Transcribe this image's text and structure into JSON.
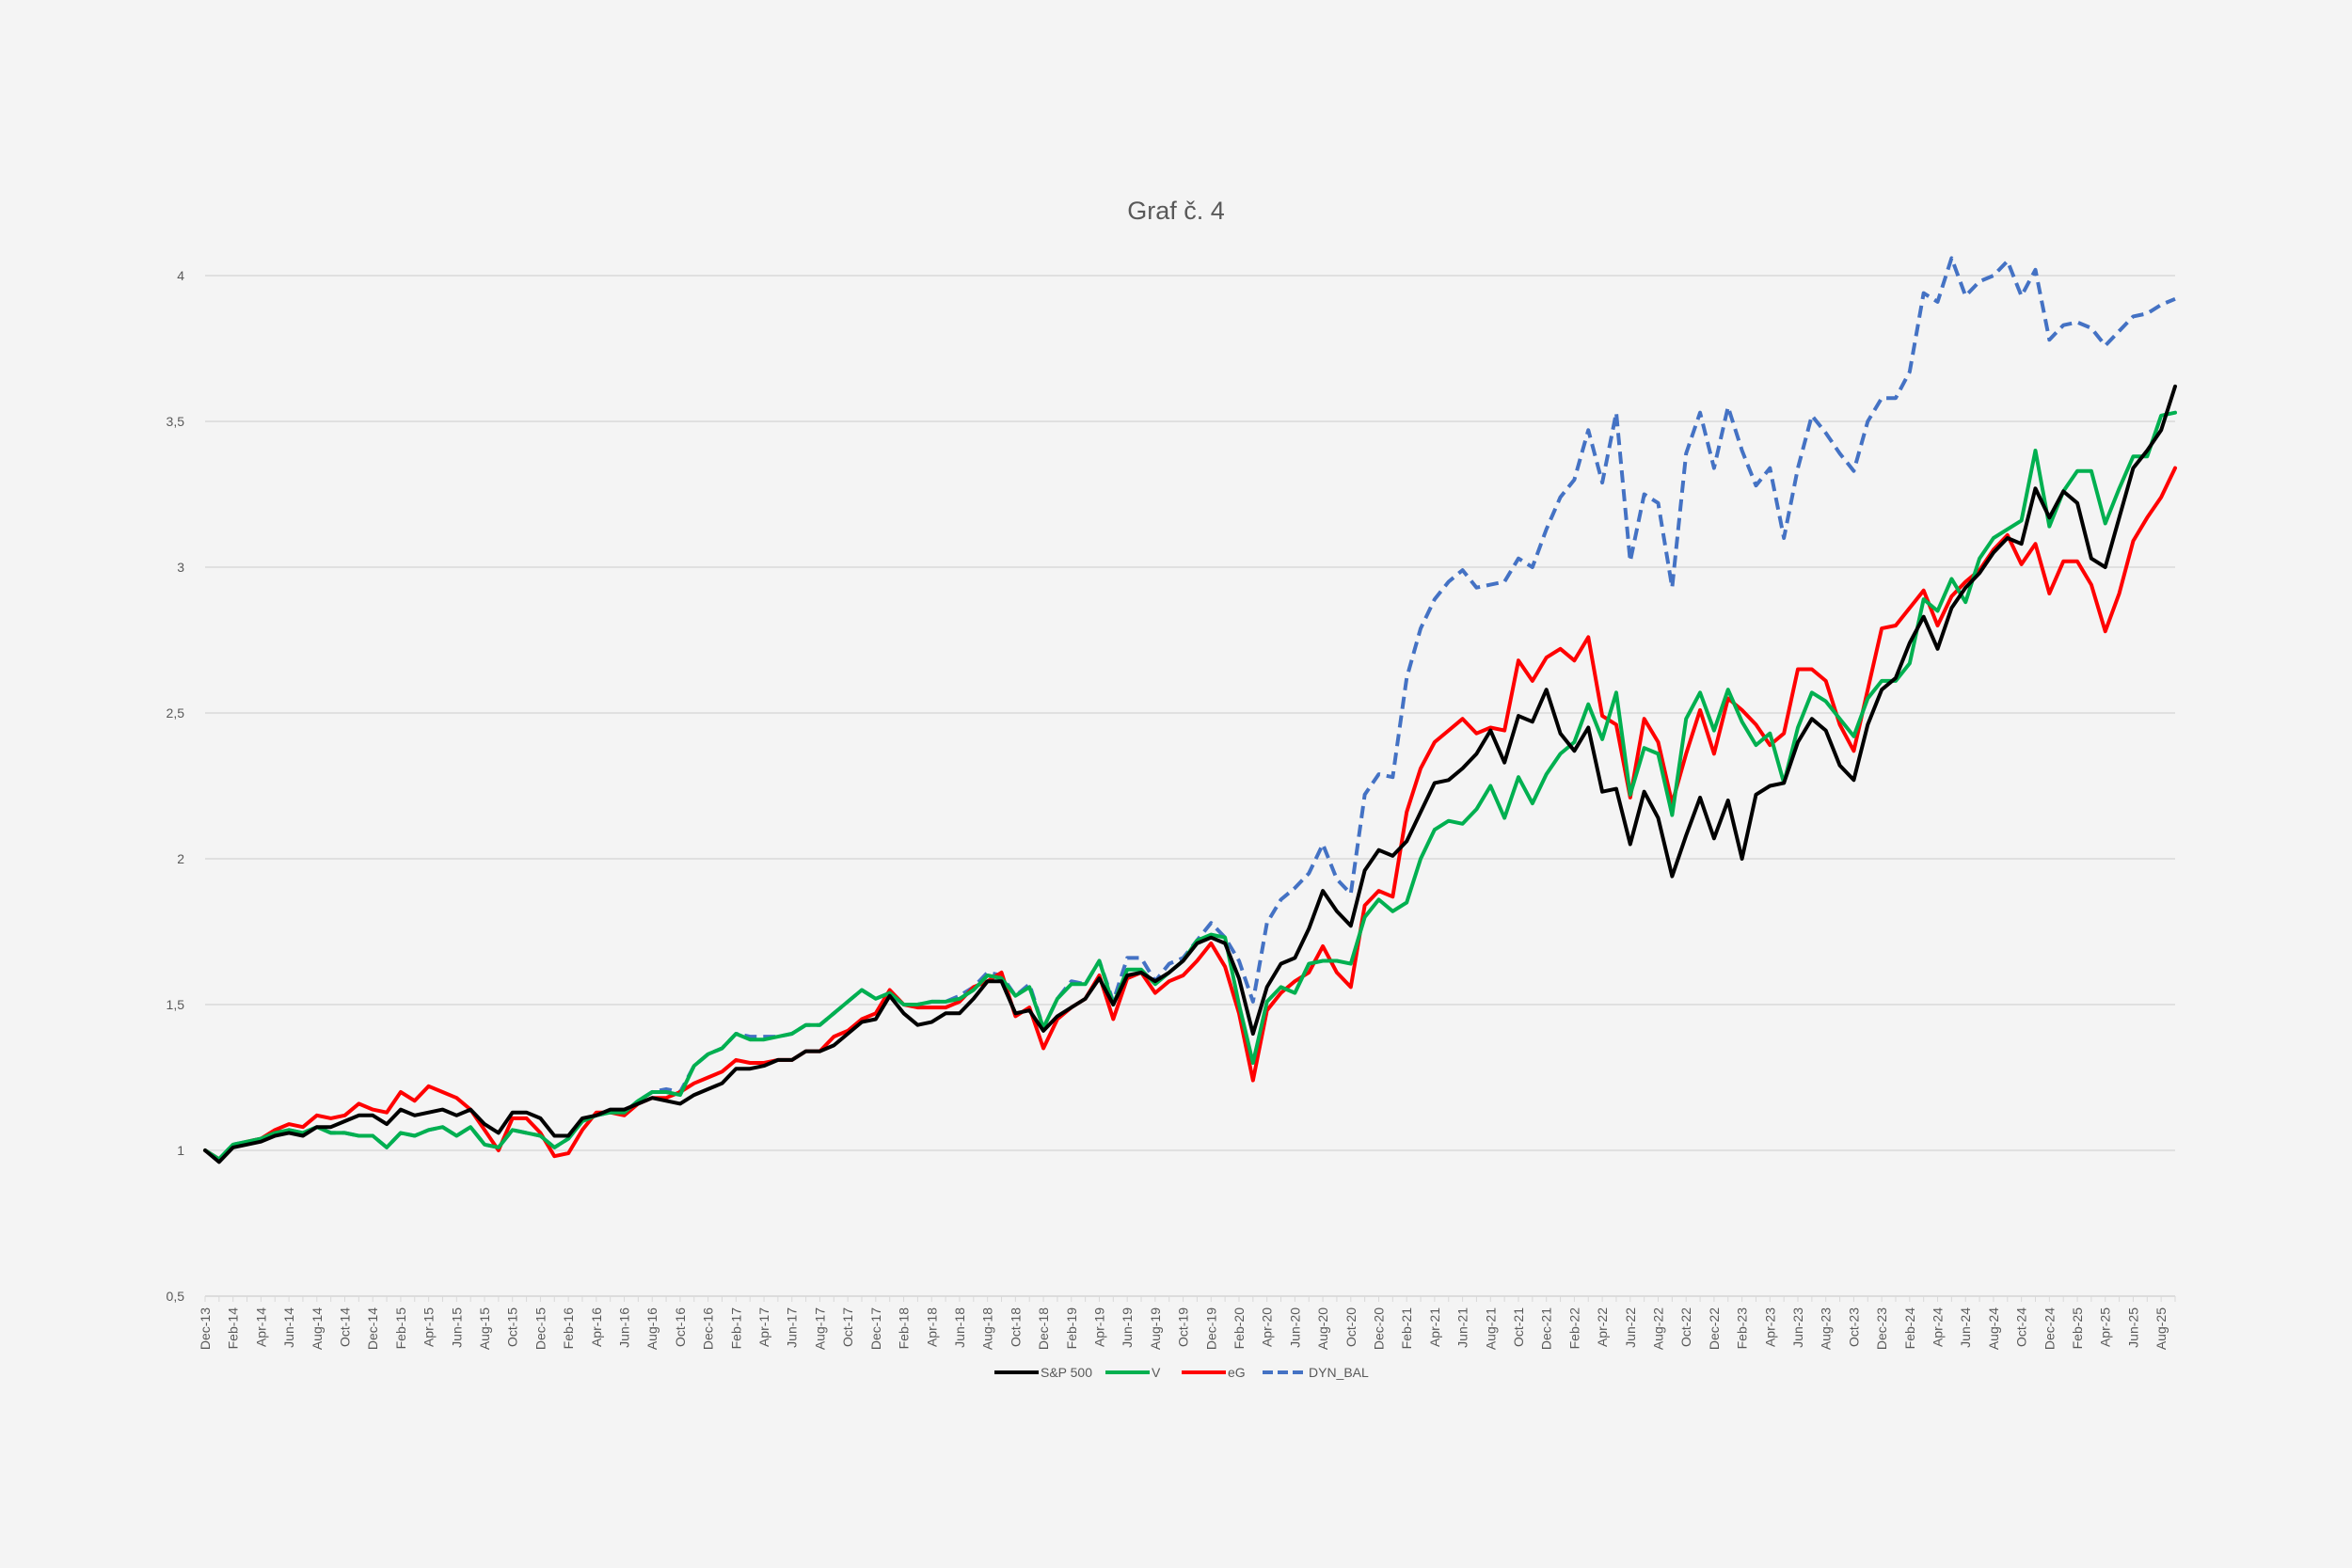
{
  "chart_data": {
    "type": "line",
    "title": "Graf č. 4",
    "xlabel": "",
    "ylabel": "",
    "ylim": [
      0.5,
      4
    ],
    "yticks": [
      "0,5",
      "1",
      "1,5",
      "2",
      "2,5",
      "3",
      "3,5",
      "4"
    ],
    "grid": true,
    "legend_position": "bottom",
    "x_tick_labels": [
      "Dec-13",
      "Feb-14",
      "Apr-14",
      "Jun-14",
      "Aug-14",
      "Oct-14",
      "Dec-14",
      "Feb-15",
      "Apr-15",
      "Jun-15",
      "Aug-15",
      "Oct-15",
      "Dec-15",
      "Feb-16",
      "Apr-16",
      "Jun-16",
      "Aug-16",
      "Oct-16",
      "Dec-16",
      "Feb-17",
      "Apr-17",
      "Jun-17",
      "Aug-17",
      "Oct-17",
      "Dec-17",
      "Feb-18",
      "Apr-18",
      "Jun-18",
      "Aug-18",
      "Oct-18",
      "Dec-18",
      "Feb-19",
      "Apr-19",
      "Jun-19",
      "Aug-19",
      "Oct-19",
      "Dec-19",
      "Feb-20",
      "Apr-20",
      "Jun-20",
      "Aug-20",
      "Oct-20",
      "Dec-20",
      "Feb-21",
      "Apr-21",
      "Jun-21",
      "Aug-21",
      "Oct-21",
      "Dec-21",
      "Feb-22",
      "Apr-22",
      "Jun-22",
      "Aug-22",
      "Oct-22",
      "Dec-22",
      "Feb-23",
      "Apr-23",
      "Jun-23",
      "Aug-23",
      "Oct-23",
      "Dec-23",
      "Feb-24",
      "Apr-24",
      "Jun-24",
      "Aug-24",
      "Oct-24",
      "Dec-24",
      "Feb-25",
      "Apr-25",
      "Jun-25",
      "Aug-25"
    ],
    "x_start": "Dec-13",
    "x_frequency": "monthly",
    "series": [
      {
        "name": "S&P 500",
        "color": "#000000",
        "dash": "solid",
        "values": [
          1.0,
          0.96,
          1.01,
          1.02,
          1.03,
          1.05,
          1.06,
          1.05,
          1.08,
          1.08,
          1.1,
          1.12,
          1.12,
          1.09,
          1.14,
          1.12,
          1.13,
          1.14,
          1.12,
          1.14,
          1.09,
          1.06,
          1.13,
          1.13,
          1.11,
          1.05,
          1.05,
          1.11,
          1.12,
          1.14,
          1.14,
          1.16,
          1.18,
          1.17,
          1.16,
          1.19,
          1.21,
          1.23,
          1.28,
          1.28,
          1.29,
          1.31,
          1.31,
          1.34,
          1.34,
          1.36,
          1.4,
          1.44,
          1.45,
          1.53,
          1.47,
          1.43,
          1.44,
          1.47,
          1.47,
          1.52,
          1.58,
          1.58,
          1.47,
          1.48,
          1.41,
          1.46,
          1.49,
          1.52,
          1.59,
          1.5,
          1.6,
          1.61,
          1.58,
          1.61,
          1.65,
          1.71,
          1.73,
          1.71,
          1.59,
          1.4,
          1.56,
          1.64,
          1.66,
          1.76,
          1.89,
          1.82,
          1.77,
          1.96,
          2.03,
          2.01,
          2.06,
          2.16,
          2.26,
          2.27,
          2.31,
          2.36,
          2.44,
          2.33,
          2.49,
          2.47,
          2.58,
          2.43,
          2.37,
          2.45,
          2.23,
          2.24,
          2.05,
          2.23,
          2.14,
          1.94,
          2.08,
          2.21,
          2.07,
          2.2,
          2.0,
          2.22,
          2.25,
          2.26,
          2.4,
          2.48,
          2.44,
          2.32,
          2.27,
          2.46,
          2.58,
          2.62,
          2.74,
          2.83,
          2.72,
          2.86,
          2.93,
          2.98,
          3.05,
          3.1,
          3.08,
          3.27,
          3.17,
          3.26,
          3.22,
          3.03,
          3.0,
          3.17,
          3.34,
          3.4,
          3.47,
          3.62
        ]
      },
      {
        "name": "V",
        "color": "#00b050",
        "dash": "solid",
        "values": [
          1.0,
          0.97,
          1.02,
          1.03,
          1.04,
          1.06,
          1.07,
          1.06,
          1.08,
          1.06,
          1.06,
          1.05,
          1.05,
          1.01,
          1.06,
          1.05,
          1.07,
          1.08,
          1.05,
          1.08,
          1.02,
          1.01,
          1.07,
          1.06,
          1.05,
          1.01,
          1.04,
          1.1,
          1.12,
          1.13,
          1.13,
          1.17,
          1.2,
          1.2,
          1.19,
          1.29,
          1.33,
          1.35,
          1.4,
          1.38,
          1.38,
          1.39,
          1.4,
          1.43,
          1.43,
          1.47,
          1.51,
          1.55,
          1.52,
          1.54,
          1.5,
          1.5,
          1.51,
          1.51,
          1.52,
          1.55,
          1.6,
          1.59,
          1.53,
          1.56,
          1.42,
          1.52,
          1.57,
          1.57,
          1.65,
          1.5,
          1.62,
          1.62,
          1.57,
          1.61,
          1.65,
          1.72,
          1.74,
          1.73,
          1.5,
          1.3,
          1.51,
          1.56,
          1.54,
          1.64,
          1.65,
          1.65,
          1.64,
          1.8,
          1.86,
          1.82,
          1.85,
          2.0,
          2.1,
          2.13,
          2.12,
          2.17,
          2.25,
          2.14,
          2.28,
          2.19,
          2.29,
          2.36,
          2.4,
          2.53,
          2.41,
          2.57,
          2.22,
          2.38,
          2.36,
          2.15,
          2.48,
          2.57,
          2.44,
          2.58,
          2.47,
          2.39,
          2.43,
          2.26,
          2.45,
          2.57,
          2.54,
          2.48,
          2.42,
          2.55,
          2.61,
          2.61,
          2.67,
          2.89,
          2.85,
          2.96,
          2.88,
          3.03,
          3.1,
          3.13,
          3.16,
          3.4,
          3.14,
          3.26,
          3.33,
          3.33,
          3.15,
          3.27,
          3.38,
          3.38,
          3.52,
          3.53
        ]
      },
      {
        "name": "eG",
        "color": "#ff0000",
        "dash": "solid",
        "values": [
          1.0,
          0.97,
          1.01,
          1.03,
          1.04,
          1.07,
          1.09,
          1.08,
          1.12,
          1.11,
          1.12,
          1.16,
          1.14,
          1.13,
          1.2,
          1.17,
          1.22,
          1.2,
          1.18,
          1.14,
          1.07,
          1.0,
          1.11,
          1.11,
          1.06,
          0.98,
          0.99,
          1.07,
          1.13,
          1.13,
          1.12,
          1.16,
          1.18,
          1.18,
          1.2,
          1.23,
          1.25,
          1.27,
          1.31,
          1.3,
          1.3,
          1.31,
          1.31,
          1.34,
          1.34,
          1.39,
          1.41,
          1.45,
          1.47,
          1.55,
          1.5,
          1.49,
          1.49,
          1.49,
          1.51,
          1.56,
          1.58,
          1.61,
          1.46,
          1.49,
          1.35,
          1.45,
          1.49,
          1.52,
          1.6,
          1.45,
          1.59,
          1.61,
          1.54,
          1.58,
          1.6,
          1.65,
          1.71,
          1.63,
          1.47,
          1.24,
          1.48,
          1.54,
          1.58,
          1.61,
          1.7,
          1.61,
          1.56,
          1.84,
          1.89,
          1.87,
          2.16,
          2.31,
          2.4,
          2.44,
          2.48,
          2.43,
          2.45,
          2.44,
          2.68,
          2.61,
          2.69,
          2.72,
          2.68,
          2.76,
          2.49,
          2.46,
          2.21,
          2.48,
          2.4,
          2.19,
          2.36,
          2.51,
          2.36,
          2.55,
          2.51,
          2.46,
          2.39,
          2.43,
          2.65,
          2.65,
          2.61,
          2.46,
          2.37,
          2.58,
          2.79,
          2.8,
          2.86,
          2.92,
          2.8,
          2.9,
          2.95,
          2.99,
          3.06,
          3.11,
          3.01,
          3.08,
          2.91,
          3.02,
          3.02,
          2.94,
          2.78,
          2.91,
          3.09,
          3.17,
          3.24,
          3.34
        ]
      },
      {
        "name": "DYN_BAL",
        "color": "#4472c4",
        "dash": "dashed",
        "values": [
          1.0,
          0.97,
          1.02,
          1.03,
          1.04,
          1.06,
          1.07,
          1.06,
          1.08,
          1.06,
          1.06,
          1.05,
          1.05,
          1.01,
          1.06,
          1.05,
          1.07,
          1.08,
          1.05,
          1.08,
          1.02,
          1.01,
          1.07,
          1.06,
          1.05,
          1.01,
          1.04,
          1.1,
          1.12,
          1.13,
          1.13,
          1.17,
          1.2,
          1.21,
          1.2,
          1.29,
          1.33,
          1.35,
          1.4,
          1.39,
          1.39,
          1.39,
          1.4,
          1.43,
          1.43,
          1.47,
          1.51,
          1.55,
          1.52,
          1.54,
          1.5,
          1.5,
          1.51,
          1.51,
          1.53,
          1.56,
          1.61,
          1.6,
          1.53,
          1.57,
          1.42,
          1.52,
          1.58,
          1.57,
          1.65,
          1.51,
          1.66,
          1.66,
          1.58,
          1.64,
          1.66,
          1.72,
          1.78,
          1.73,
          1.65,
          1.51,
          1.78,
          1.86,
          1.9,
          1.95,
          2.05,
          1.93,
          1.88,
          2.22,
          2.29,
          2.28,
          2.62,
          2.79,
          2.89,
          2.95,
          2.99,
          2.93,
          2.94,
          2.95,
          3.03,
          3.0,
          3.13,
          3.24,
          3.3,
          3.47,
          3.29,
          3.53,
          3.02,
          3.25,
          3.22,
          2.93,
          3.39,
          3.53,
          3.34,
          3.55,
          3.4,
          3.28,
          3.34,
          3.1,
          3.34,
          3.52,
          3.46,
          3.39,
          3.33,
          3.5,
          3.58,
          3.58,
          3.67,
          3.94,
          3.91,
          4.06,
          3.93,
          3.98,
          4.0,
          4.05,
          3.93,
          4.02,
          3.78,
          3.83,
          3.84,
          3.82,
          3.76,
          3.81,
          3.86,
          3.87,
          3.9,
          3.92
        ]
      }
    ]
  }
}
